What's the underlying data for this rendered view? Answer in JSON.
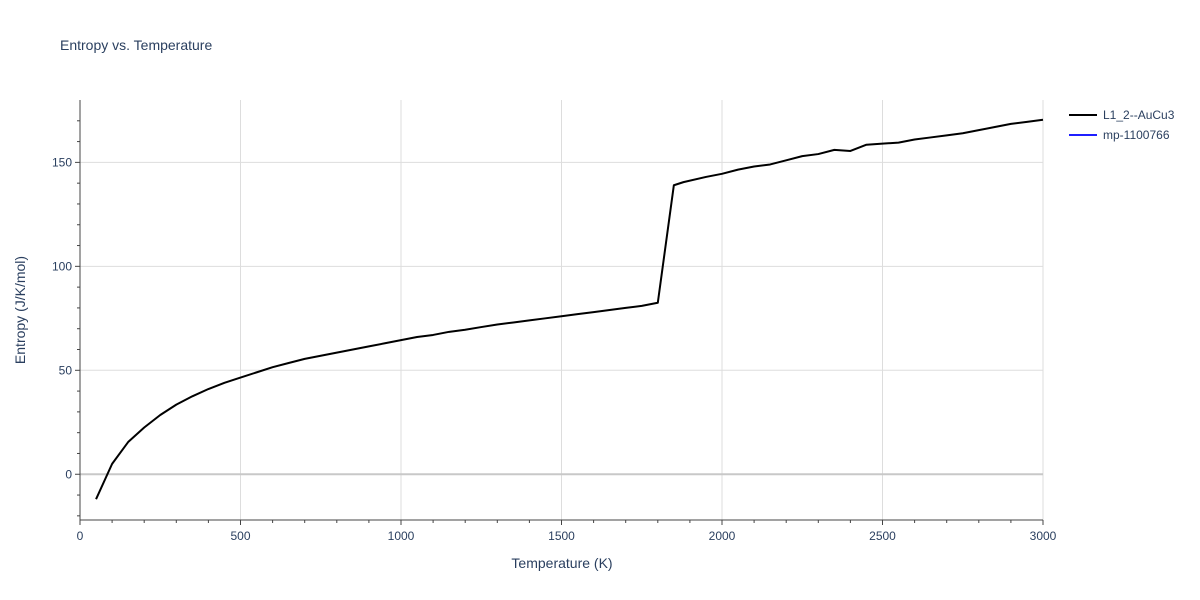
{
  "chart_data": {
    "type": "line",
    "title": "Entropy vs. Temperature",
    "xlabel": "Temperature (K)",
    "ylabel": "Entropy (J/K/mol)",
    "xlim": [
      0,
      3000
    ],
    "ylim": [
      -22,
      180
    ],
    "xticks": [
      0,
      500,
      1000,
      1500,
      2000,
      2500,
      3000
    ],
    "yticks": [
      0,
      50,
      100,
      150
    ],
    "grid": true,
    "legend_position": "top-right",
    "series": [
      {
        "name": "L1_2--AuCu3",
        "color": "#000000",
        "x": [
          50,
          100,
          150,
          200,
          250,
          300,
          350,
          400,
          450,
          500,
          550,
          600,
          650,
          700,
          750,
          800,
          850,
          900,
          950,
          1000,
          1050,
          1100,
          1150,
          1200,
          1250,
          1300,
          1350,
          1400,
          1450,
          1500,
          1550,
          1600,
          1650,
          1700,
          1750,
          1800,
          1850,
          1880,
          1950,
          2000,
          2050,
          2100,
          2150,
          2200,
          2250,
          2300,
          2350,
          2400,
          2450,
          2500,
          2550,
          2600,
          2650,
          2700,
          2750,
          2800,
          2850,
          2900,
          2950,
          3000
        ],
        "y": [
          -12,
          5,
          15.5,
          22.5,
          28.5,
          33.5,
          37.5,
          41,
          44,
          46.5,
          49,
          51.5,
          53.5,
          55.5,
          57,
          58.5,
          60,
          61.5,
          63,
          64.5,
          66,
          67,
          68.5,
          69.5,
          70.8,
          72,
          73,
          74,
          75,
          76,
          77,
          78,
          79,
          80,
          81,
          82.5,
          139,
          140.5,
          143,
          144.5,
          146.5,
          148,
          149,
          151,
          153,
          154,
          156,
          155.5,
          158.5,
          159,
          159.5,
          161,
          162,
          163,
          164,
          165.5,
          167,
          168.5,
          169.5,
          170.5
        ]
      },
      {
        "name": "mp-1100766",
        "color": "#1f1fff",
        "x": [],
        "y": []
      }
    ]
  }
}
